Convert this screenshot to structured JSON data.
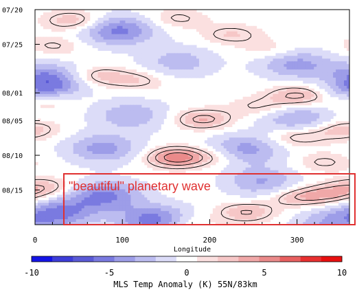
{
  "chart_data": {
    "type": "heatmap",
    "title": "",
    "xlabel": "Longitude",
    "x_ticks": [
      0,
      100,
      200,
      300
    ],
    "xlim": [
      0,
      360
    ],
    "y_ticks": [
      "07/20",
      "07/25",
      "08/01",
      "08/05",
      "08/10",
      "08/15"
    ],
    "y_tick_days": [
      0,
      5,
      12,
      16,
      21,
      26
    ],
    "ylim_days": [
      0,
      31
    ],
    "colorbar": {
      "label": "MLS Temp Anomaly (K) 55N/83km",
      "ticks": [
        "-10",
        "-5",
        "0",
        "5",
        "10"
      ],
      "range": [
        -10,
        10
      ],
      "colors": [
        "#1414e6",
        "#3d3dd8",
        "#5a5ad6",
        "#7a7ae0",
        "#9d9de8",
        "#bcbcf0",
        "#dcdcf8",
        "#ffffff",
        "#fbe0e0",
        "#f6c7c7",
        "#f0a8a8",
        "#ea8a8a",
        "#e86060",
        "#e83030",
        "#e81010"
      ]
    },
    "annotation": {
      "text": "\"beautiful\" planetary wave",
      "color": "#e03030"
    },
    "features": [
      {
        "kind": "warm",
        "lon": 162,
        "day": 1.3,
        "amp": 1.9
      },
      {
        "kind": "warm",
        "lon": 225,
        "day": 3.6,
        "amp": 2.2
      },
      {
        "kind": "warm",
        "lon": 270,
        "day": 5.8,
        "amp": 1.6
      },
      {
        "kind": "warm",
        "lon": 405,
        "day": 1.6,
        "amp": 3.2
      },
      {
        "kind": "warm",
        "lon": 382,
        "day": 5.2,
        "amp": 1.8
      },
      {
        "kind": "warm",
        "lon": 72,
        "day": 9.6,
        "amp": 2.6
      },
      {
        "kind": "warm",
        "lon": 118,
        "day": 10.2,
        "amp": 2.0
      },
      {
        "kind": "warm",
        "lon": 12,
        "day": 13.2,
        "amp": 2.2
      },
      {
        "kind": "warm",
        "lon": 302,
        "day": 12.4,
        "amp": 3.8
      },
      {
        "kind": "warm",
        "lon": 348,
        "day": 10.4,
        "amp": 2.2
      },
      {
        "kind": "warm",
        "lon": 192,
        "day": 15.8,
        "amp": 3.6
      },
      {
        "kind": "warm",
        "lon": 258,
        "day": 14.0,
        "amp": 2.0
      },
      {
        "kind": "warm",
        "lon": 300,
        "day": 18.3,
        "amp": 2.8
      },
      {
        "kind": "warm",
        "lon": 352,
        "day": 17.3,
        "amp": 3.0
      },
      {
        "kind": "warm",
        "lon": 162,
        "day": 21.3,
        "amp": 5.6
      },
      {
        "kind": "warm",
        "lon": 210,
        "day": 21.2,
        "amp": 1.8
      },
      {
        "kind": "warm",
        "lon": 330,
        "day": 22.0,
        "amp": 1.8
      },
      {
        "kind": "warm",
        "lon": 12,
        "day": 25.6,
        "amp": 2.6
      },
      {
        "kind": "warm",
        "lon": 300,
        "day": 27.0,
        "amp": 3.0
      },
      {
        "kind": "warm",
        "lon": 340,
        "day": 26.6,
        "amp": 3.2
      },
      {
        "kind": "warm",
        "lon": 242,
        "day": 29.2,
        "amp": 3.2
      },
      {
        "kind": "warm",
        "lon": 172,
        "day": 30.8,
        "amp": 2.2
      },
      {
        "kind": "cold",
        "lon": 95,
        "day": 3.0,
        "amp": -5.2
      },
      {
        "kind": "cold",
        "lon": 165,
        "day": 7.5,
        "amp": -2.8
      },
      {
        "kind": "cold",
        "lon": 8,
        "day": 11.0,
        "amp": -5.5
      },
      {
        "kind": "cold",
        "lon": 298,
        "day": 7.8,
        "amp": -3.8
      },
      {
        "kind": "cold",
        "lon": 370,
        "day": 9.6,
        "amp": -2.8
      },
      {
        "kind": "cold",
        "lon": 110,
        "day": 15.2,
        "amp": -3.2
      },
      {
        "kind": "cold",
        "lon": 300,
        "day": 15.8,
        "amp": -3.5
      },
      {
        "kind": "cold",
        "lon": 78,
        "day": 20.0,
        "amp": -4.0
      },
      {
        "kind": "cold",
        "lon": 240,
        "day": 20.2,
        "amp": -4.2
      },
      {
        "kind": "cold",
        "lon": 260,
        "day": 24.8,
        "amp": -3.5
      },
      {
        "kind": "cold",
        "lon": 80,
        "day": 26.8,
        "amp": -5.0
      },
      {
        "kind": "cold",
        "lon": 28,
        "day": 29.3,
        "amp": -4.8
      },
      {
        "kind": "cold",
        "lon": 138,
        "day": 30.4,
        "amp": -5.8
      },
      {
        "kind": "cold",
        "lon": 338,
        "day": 30.8,
        "amp": -3.2
      }
    ]
  }
}
